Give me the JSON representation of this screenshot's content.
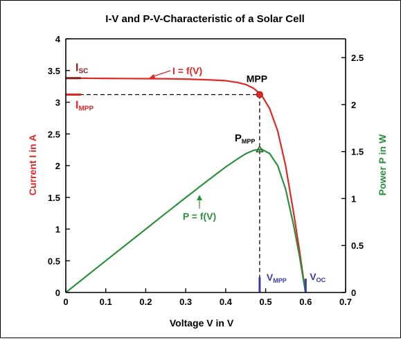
{
  "chart_data": {
    "type": "line",
    "title": "I-V and P-V-Characteristic of a Solar Cell",
    "xlabel": "Voltage V in V",
    "ylabel_left": "Current I in A",
    "ylabel_right": "Power P in W",
    "xlim": [
      0,
      0.7
    ],
    "ylim_left": [
      0,
      4
    ],
    "ylim_right": [
      0,
      2.7
    ],
    "xticks": [
      "0",
      "0.1",
      "0.2",
      "0.3",
      "0.4",
      "0.5",
      "0.6",
      "0.7"
    ],
    "yticks_left": [
      "0",
      "0.5",
      "1",
      "1.5",
      "2",
      "2.5",
      "3",
      "3.5",
      "4"
    ],
    "yticks_right": [
      "0",
      "0.5",
      "1",
      "1.5",
      "2",
      "2.5"
    ],
    "colors": {
      "current": "#e32626",
      "power": "#2a8f3e",
      "marker": "#3a3aa8",
      "axis": "#000000"
    },
    "series": [
      {
        "name": "I = f(V)",
        "axis": "left",
        "x": [
          0,
          0.05,
          0.1,
          0.15,
          0.2,
          0.25,
          0.3,
          0.35,
          0.4,
          0.43,
          0.45,
          0.47,
          0.49,
          0.51,
          0.53,
          0.55,
          0.57,
          0.585,
          0.595,
          0.6
        ],
        "values": [
          3.38,
          3.378,
          3.376,
          3.374,
          3.372,
          3.37,
          3.365,
          3.355,
          3.34,
          3.31,
          3.28,
          3.22,
          3.11,
          2.9,
          2.55,
          2.0,
          1.25,
          0.65,
          0.2,
          0
        ]
      },
      {
        "name": "P = f(V)",
        "axis": "right",
        "x": [
          0,
          0.05,
          0.1,
          0.15,
          0.2,
          0.25,
          0.3,
          0.35,
          0.4,
          0.43,
          0.45,
          0.47,
          0.49,
          0.51,
          0.53,
          0.55,
          0.57,
          0.585,
          0.595,
          0.6
        ],
        "values": [
          0,
          0.169,
          0.338,
          0.506,
          0.674,
          0.843,
          1.01,
          1.175,
          1.336,
          1.423,
          1.476,
          1.513,
          1.524,
          1.479,
          1.352,
          1.1,
          0.713,
          0.38,
          0.119,
          0
        ]
      }
    ],
    "mpp": {
      "label": "MPP",
      "v": 0.485,
      "i": 3.12
    },
    "pmpp": {
      "label": "MPP",
      "prefix": "P",
      "v": 0.485,
      "p": 1.52
    },
    "isc": {
      "prefix": "I",
      "sub": "SC",
      "value": 3.38
    },
    "impp": {
      "prefix": "I",
      "sub": "MPP",
      "value": 3.12
    },
    "vmpp": {
      "prefix": "V",
      "sub": "MPP",
      "value": 0.485
    },
    "voc": {
      "prefix": "V",
      "sub": "OC",
      "value": 0.6
    },
    "annotations": {
      "i_curve": "I = f(V)",
      "p_curve": "P = f(V)"
    }
  }
}
